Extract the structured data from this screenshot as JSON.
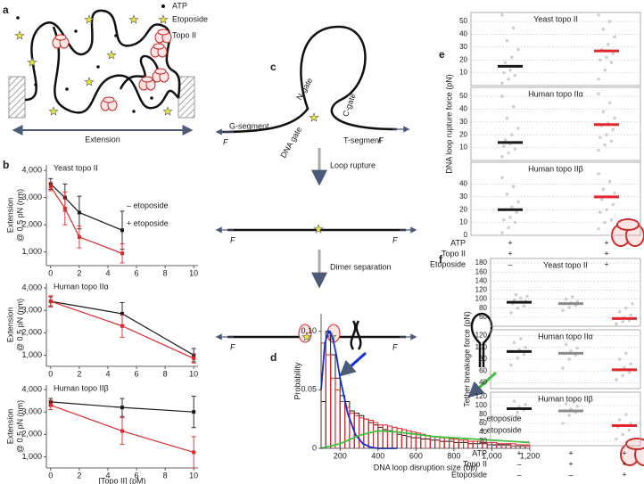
{
  "panel_labels": [
    "a",
    "b",
    "c",
    "d",
    "e",
    "f"
  ],
  "diagram_a": {
    "legend": [
      "ATP",
      "Etoposide",
      "Topo II"
    ],
    "axis_label": "Extension"
  },
  "diagram_c": {
    "n_gate": "N-gate",
    "c_gate": "C-gate",
    "dna_gate": "DNA gate",
    "g_segment": "G-segment",
    "t_segment": "T-segment",
    "force": "F",
    "steps": [
      "Loop rupture",
      "Dimer separation"
    ]
  },
  "chart_data": [
    {
      "type": "line",
      "title": "Yeast topo II",
      "y_label": [
        "Extension",
        "@ 0.5 pN (nm)"
      ],
      "x": [
        0,
        1,
        2,
        5
      ],
      "xlim": [
        -0.3,
        10.3
      ],
      "xticks": [
        0,
        2,
        4,
        6,
        8,
        10
      ],
      "ylim": [
        500,
        4200
      ],
      "yticks": [
        {
          "value": 1000,
          "label": "1,000"
        },
        {
          "value": 2000,
          "label": "2,000"
        },
        {
          "value": 3000,
          "label": "3,000"
        },
        {
          "value": 4000,
          "label": "4,000"
        }
      ],
      "legend": true,
      "series": [
        {
          "name": "– etoposide",
          "color": "#1a1a1a",
          "values": [
            3500,
            3000,
            2450,
            1800
          ],
          "errors": [
            200,
            500,
            600,
            700
          ]
        },
        {
          "name": "+ etoposide",
          "color": "#e3262b",
          "values": [
            3400,
            2600,
            1550,
            950
          ],
          "errors": [
            150,
            600,
            400,
            350
          ]
        }
      ]
    },
    {
      "type": "line",
      "title": "Human topo IIα",
      "y_label": [
        "Extension",
        "@ 0.5 pN (nm)"
      ],
      "x": [
        0,
        5,
        10
      ],
      "xlim": [
        -0.3,
        10.3
      ],
      "xticks": [
        0,
        2,
        4,
        6,
        8,
        10
      ],
      "ylim": [
        500,
        4200
      ],
      "yticks": [
        {
          "value": 1000,
          "label": "1,000"
        },
        {
          "value": 2000,
          "label": "2,000"
        },
        {
          "value": 3000,
          "label": "3,000"
        },
        {
          "value": 4000,
          "label": "4,000"
        }
      ],
      "series": [
        {
          "color": "#1a1a1a",
          "values": [
            3400,
            2850,
            1000
          ],
          "errors": [
            200,
            500,
            300
          ]
        },
        {
          "color": "#e3262b",
          "values": [
            3400,
            2300,
            850
          ],
          "errors": [
            250,
            500,
            200
          ]
        }
      ]
    },
    {
      "type": "line",
      "title": "Human topo IIβ",
      "y_label": [
        "Extension",
        "@ 0.5 pN (nm)"
      ],
      "x_label": "[Topo II] (pM)",
      "x": [
        0,
        5,
        10
      ],
      "xlim": [
        -0.3,
        10.3
      ],
      "xticks": [
        0,
        2,
        4,
        6,
        8,
        10
      ],
      "ylim": [
        500,
        4200
      ],
      "yticks": [
        {
          "value": 1000,
          "label": "1,000"
        },
        {
          "value": 2000,
          "label": "2,000"
        },
        {
          "value": 3000,
          "label": "3,000"
        },
        {
          "value": 4000,
          "label": "4,000"
        }
      ],
      "series": [
        {
          "color": "#1a1a1a",
          "values": [
            3450,
            3200,
            3000
          ],
          "errors": [
            150,
            400,
            700
          ]
        },
        {
          "color": "#e3262b",
          "values": [
            3300,
            2150,
            1200
          ],
          "errors": [
            200,
            600,
            700
          ]
        }
      ]
    },
    {
      "type": "histogram",
      "x_label": "DNA loop disruption size (bp)",
      "y_label": "Probability",
      "bins": [
        100,
        125,
        150,
        175,
        200,
        225,
        250,
        275,
        300,
        325,
        350,
        375,
        400,
        425,
        450,
        475,
        500,
        525,
        550,
        575,
        600,
        625,
        650,
        675,
        700,
        725,
        750,
        775,
        800,
        825,
        850,
        875,
        900,
        925,
        950,
        975,
        1000,
        1025,
        1050,
        1075,
        1100,
        1125,
        1150,
        1175,
        1200
      ],
      "xlim": [
        100,
        1200
      ],
      "xticks": [
        200,
        400,
        600,
        800,
        {
          "value": 1000,
          "label": "1,000"
        },
        {
          "value": 1200,
          "label": "1,200"
        }
      ],
      "ylim": [
        0,
        0.115
      ],
      "yticks": [
        0,
        0.05,
        {
          "value": 0.1,
          "label": "0.10"
        }
      ],
      "series": [
        {
          "name": "– etoposide",
          "color": "#1a1a1a",
          "values": [
            0.04,
            0.1,
            0.08,
            0.06,
            0.045,
            0.04,
            0.032,
            0.03,
            0.028,
            0.025,
            0.022,
            0.02,
            0.018,
            0.016,
            0.015,
            0.014,
            0.012,
            0.011,
            0.01,
            0.009,
            0.009,
            0.008,
            0.008,
            0.007,
            0.007,
            0.006,
            0.006,
            0.006,
            0.005,
            0.005,
            0.005,
            0.004,
            0.004,
            0.004,
            0.004,
            0.003,
            0.003,
            0.003,
            0.003,
            0.003,
            0.002,
            0.002,
            0.002,
            0.002
          ]
        },
        {
          "name": "+ etoposide",
          "color": "#e3262b",
          "values": [
            0.09,
            0.08,
            0.06,
            0.05,
            0.04,
            0.035,
            0.03,
            0.028,
            0.026,
            0.025,
            0.024,
            0.022,
            0.02,
            0.02,
            0.019,
            0.018,
            0.017,
            0.016,
            0.015,
            0.014,
            0.013,
            0.012,
            0.011,
            0.01,
            0.01,
            0.009,
            0.009,
            0.008,
            0.008,
            0.007,
            0.007,
            0.006,
            0.006,
            0.006,
            0.005,
            0.005,
            0.005,
            0.004,
            0.004,
            0.004,
            0.004,
            0.003,
            0.003,
            0.003
          ]
        }
      ],
      "fits": [
        {
          "color": "#1230d8",
          "x": [
            100,
            120,
            140,
            160,
            180,
            200,
            240,
            280,
            320,
            360,
            400,
            450,
            500
          ],
          "values": [
            0.05,
            0.09,
            0.1,
            0.095,
            0.08,
            0.06,
            0.03,
            0.012,
            0.004,
            0.001,
            0,
            0,
            0
          ]
        },
        {
          "color": "#3cc23c",
          "x": [
            100,
            200,
            300,
            400,
            500,
            600,
            700,
            800,
            900,
            1000,
            1100,
            1200
          ],
          "values": [
            0,
            0.004,
            0.011,
            0.015,
            0.014,
            0.012,
            0.01,
            0.009,
            0.008,
            0.007,
            0.006,
            0.005
          ]
        }
      ]
    },
    {
      "type": "strip",
      "title": "Yeast topo II",
      "ylim": [
        0,
        57
      ],
      "yticks": [
        10,
        20,
        30,
        40,
        50
      ],
      "grid": true,
      "point_color": "#c4c4c4",
      "groups": [
        {
          "color": "#1a1a1a",
          "median": 15,
          "points": [
            2,
            5,
            8,
            10,
            12,
            15,
            18,
            22,
            28,
            35,
            45,
            55
          ]
        },
        {
          "color": "#e3262b",
          "median": 27,
          "points": [
            5,
            12,
            18,
            20,
            22,
            25,
            28,
            32,
            38,
            44,
            50,
            55
          ]
        }
      ]
    },
    {
      "type": "strip",
      "title": "Human topo IIα",
      "y_label": "DNA loop rupture force (pN)",
      "ylim": [
        0,
        57
      ],
      "yticks": [
        10,
        20,
        30,
        40,
        50
      ],
      "grid": true,
      "point_color": "#c4c4c4",
      "groups": [
        {
          "color": "#1a1a1a",
          "median": 14,
          "points": [
            3,
            6,
            9,
            11,
            13,
            14,
            16,
            20,
            25,
            33,
            42,
            50
          ]
        },
        {
          "color": "#e3262b",
          "median": 28,
          "points": [
            8,
            12,
            15,
            18,
            20,
            24,
            27,
            29,
            33,
            38,
            45,
            52
          ]
        }
      ]
    },
    {
      "type": "strip",
      "title": "Human topo IIβ",
      "ylim": [
        0,
        57
      ],
      "yticks": [
        0,
        10,
        20,
        30,
        40
      ],
      "grid": true,
      "point_color": "#c4c4c4",
      "groups": [
        {
          "color": "#1a1a1a",
          "median": 20,
          "points": [
            2,
            6,
            10,
            12,
            14,
            18,
            20,
            22,
            26,
            32,
            38,
            45
          ]
        },
        {
          "color": "#e3262b",
          "median": 30,
          "points": [
            5,
            10,
            12,
            18,
            20,
            24,
            28,
            30,
            33,
            36,
            42,
            48
          ]
        }
      ],
      "conditions": [
        {
          "label": "ATP",
          "values": [
            "+",
            "+"
          ]
        },
        {
          "label": "Topo II",
          "values": [
            "+",
            "+"
          ]
        },
        {
          "label": "Etoposide",
          "values": [
            "–",
            "+"
          ]
        }
      ]
    },
    {
      "type": "strip",
      "title": "Yeast topo II",
      "ylim": [
        40,
        190
      ],
      "yticks": [
        60,
        80,
        100,
        120,
        140,
        160,
        180
      ],
      "grid": true,
      "point_color": "#c4c4c4",
      "groups": [
        {
          "color": "#1a1a1a",
          "median": 93,
          "points": [
            70,
            80,
            85,
            90,
            93,
            95,
            98,
            102,
            106,
            110
          ]
        },
        {
          "color": "#8c8c8c",
          "median": 90,
          "points": [
            75,
            82,
            86,
            90,
            92,
            95,
            100,
            105
          ]
        },
        {
          "color": "#e3262b",
          "median": 57,
          "points": [
            45,
            50,
            53,
            57,
            60,
            65,
            72,
            80,
            90
          ]
        }
      ]
    },
    {
      "type": "strip",
      "title": "Human topo IIα",
      "y_label": "Tether breakage force (pN)",
      "ylim": [
        30,
        130
      ],
      "yticks": [
        40,
        60,
        80,
        100,
        120
      ],
      "grid": true,
      "point_color": "#c4c4c4",
      "groups": [
        {
          "color": "#1a1a1a",
          "median": 93,
          "points": [
            70,
            82,
            88,
            93,
            96,
            100,
            108,
            115
          ]
        },
        {
          "color": "#8c8c8c",
          "median": 90,
          "points": [
            65,
            80,
            87,
            90,
            94,
            99,
            105
          ]
        },
        {
          "color": "#e3262b",
          "median": 62,
          "points": [
            45,
            52,
            58,
            62,
            66,
            72,
            80,
            90
          ]
        }
      ]
    },
    {
      "type": "strip",
      "title": "Human topo IIβ",
      "ylim": [
        10,
        130
      ],
      "yticks": [
        20,
        40,
        60,
        80,
        100,
        120
      ],
      "grid": true,
      "point_color": "#c4c4c4",
      "groups": [
        {
          "color": "#1a1a1a",
          "median": 93,
          "points": [
            75,
            85,
            90,
            93,
            97,
            102,
            110
          ]
        },
        {
          "color": "#8c8c8c",
          "median": 88,
          "points": [
            60,
            78,
            85,
            88,
            92,
            98,
            104
          ]
        },
        {
          "color": "#e3262b",
          "median": 55,
          "points": [
            25,
            35,
            45,
            52,
            55,
            60,
            68,
            80
          ]
        }
      ],
      "conditions": [
        {
          "label": "ATP",
          "values": [
            "+",
            "+",
            "+"
          ]
        },
        {
          "label": "Topo II",
          "values": [
            "–",
            "+",
            "+"
          ]
        },
        {
          "label": "Etoposide",
          "values": [
            "–",
            "–",
            "+"
          ]
        }
      ]
    }
  ]
}
